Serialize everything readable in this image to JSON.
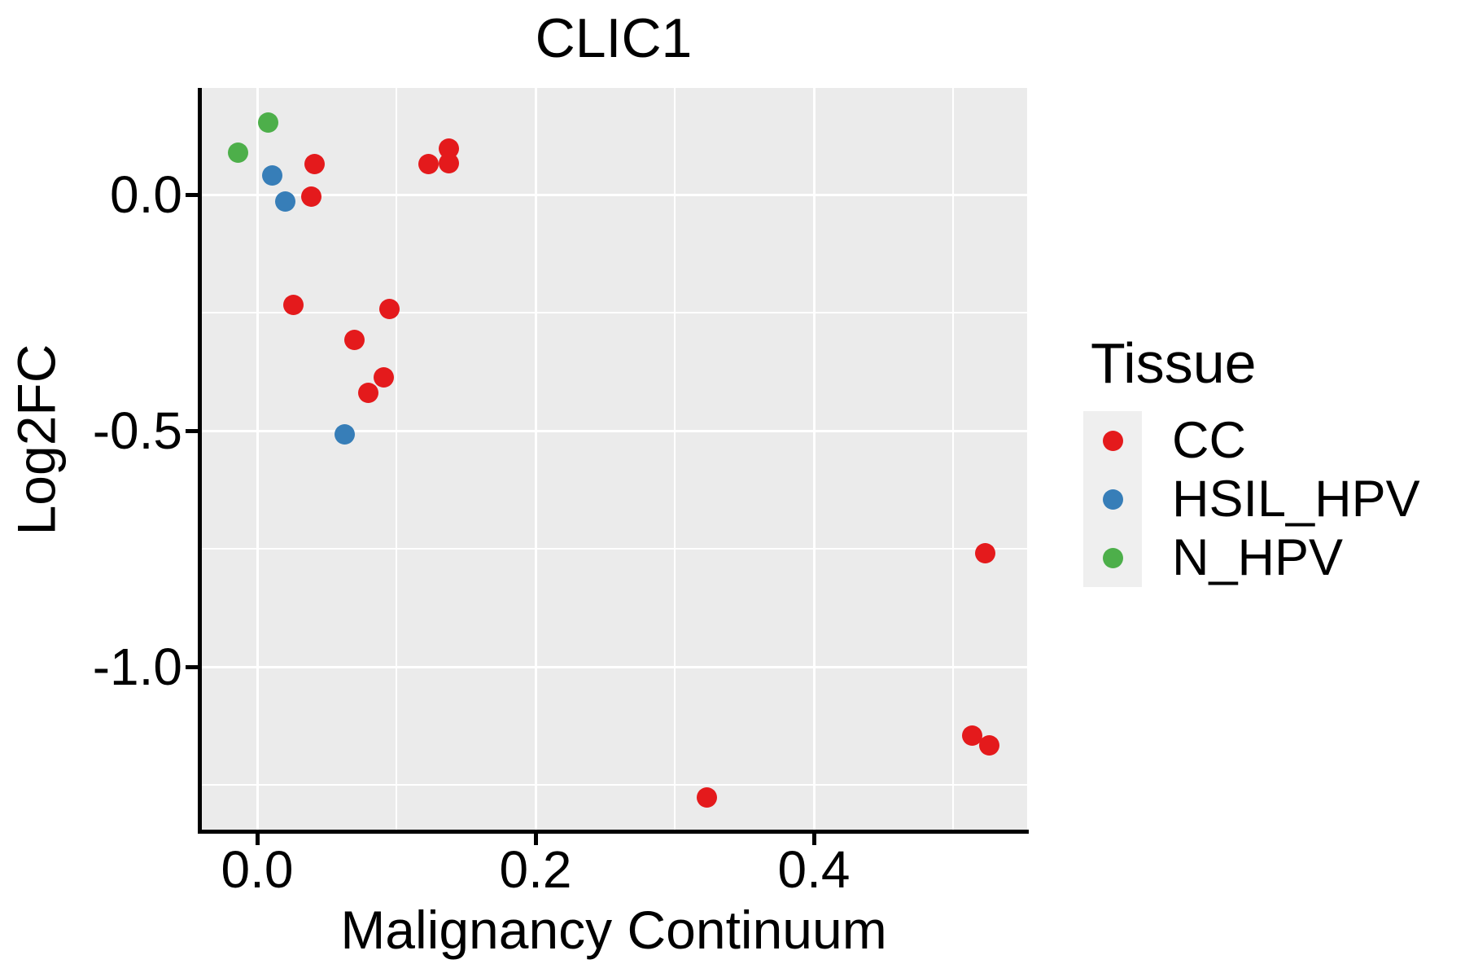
{
  "title": "CLIC1",
  "axes": {
    "x": {
      "label": "Malignancy Continuum",
      "ticks": [
        {
          "label": "0.0",
          "value": 0.0
        },
        {
          "label": "0.2",
          "value": 0.2
        },
        {
          "label": "0.4",
          "value": 0.4
        }
      ],
      "minor": [
        0.1,
        0.3,
        0.5
      ]
    },
    "y": {
      "label": "Log2FC",
      "ticks": [
        {
          "label": "0.0",
          "value": 0.0
        },
        {
          "label": "-0.5",
          "value": -0.5
        },
        {
          "label": "-1.0",
          "value": -1.0
        }
      ],
      "minor": [
        -0.25,
        -0.75,
        -1.25
      ]
    }
  },
  "legend": {
    "title": "Tissue",
    "entries": [
      {
        "label": "CC",
        "color": "#E41A1C"
      },
      {
        "label": "HSIL_HPV",
        "color": "#377EB8"
      },
      {
        "label": "N_HPV",
        "color": "#4DAF4A"
      }
    ]
  },
  "colors": {
    "panel_bg": "#EBEBEB",
    "grid": "#FFFFFF",
    "axis": "#000000",
    "legend_key_bg": "#EFEFEF",
    "cc": "#E41A1C",
    "hsil_hpv": "#377EB8",
    "n_hpv": "#4DAF4A"
  },
  "chart_data": {
    "type": "scatter",
    "title": "CLIC1",
    "xlabel": "Malignancy Continuum",
    "ylabel": "Log2FC",
    "xlim": [
      -0.041,
      0.553
    ],
    "ylim": [
      -1.347,
      0.226
    ],
    "grid": true,
    "legend_title": "Tissue",
    "legend_position": "right",
    "series": [
      {
        "name": "CC",
        "color": "#E41A1C",
        "points": [
          [
            0.041,
            0.064
          ],
          [
            0.039,
            -0.005
          ],
          [
            0.123,
            0.064
          ],
          [
            0.138,
            0.097
          ],
          [
            0.138,
            0.066
          ],
          [
            0.026,
            -0.233
          ],
          [
            0.095,
            -0.243
          ],
          [
            0.07,
            -0.308
          ],
          [
            0.091,
            -0.387
          ],
          [
            0.08,
            -0.419
          ],
          [
            0.523,
            -0.76
          ],
          [
            0.514,
            -1.145
          ],
          [
            0.526,
            -1.167
          ],
          [
            0.323,
            -1.276
          ]
        ]
      },
      {
        "name": "HSIL_HPV",
        "color": "#377EB8",
        "points": [
          [
            0.011,
            0.041
          ],
          [
            0.02,
            -0.014
          ],
          [
            0.063,
            -0.507
          ]
        ]
      },
      {
        "name": "N_HPV",
        "color": "#4DAF4A",
        "points": [
          [
            -0.014,
            0.088
          ],
          [
            0.008,
            0.153
          ]
        ]
      }
    ]
  }
}
